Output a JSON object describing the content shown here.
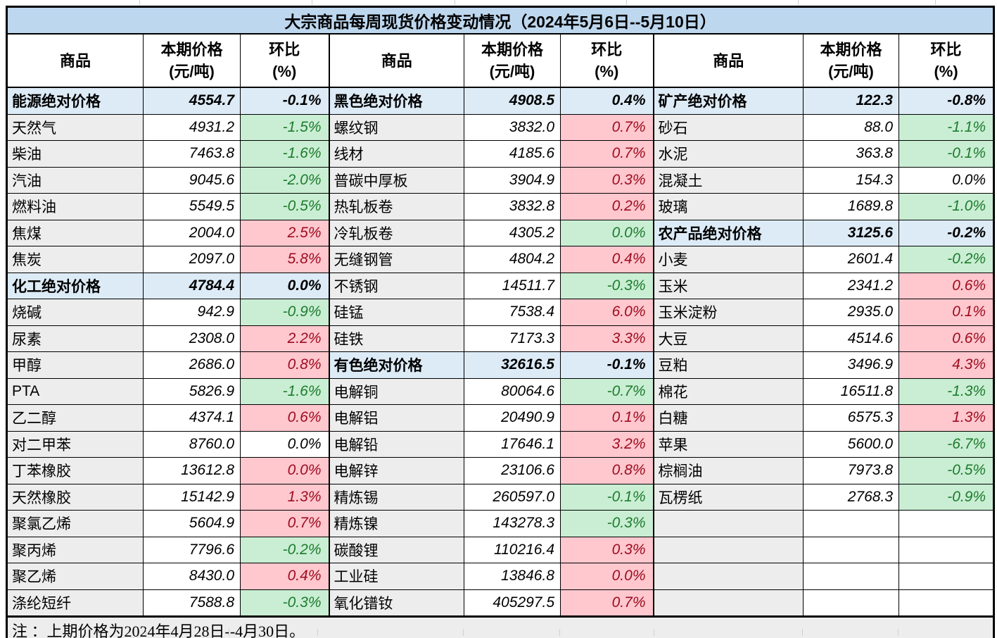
{
  "chart_data": {
    "type": "table",
    "title": "大宗商品每周现货价格变动情况（2024年5月6日--5月10日）",
    "note": "注 ：上期价格为2024年4月28日--4月30日。",
    "column_headers": {
      "commodity": "商品",
      "price_line1": "本期价格",
      "price_line2": "(元/吨)",
      "pct_line1": "环比",
      "pct_line2": "(%)"
    },
    "colors": {
      "title_bg": "#BDD7EE",
      "section_bg": "#DDEBF7",
      "name_bg": "#EDEDED",
      "increase_bg": "#FFC7CE",
      "increase_text": "#9C0B1E",
      "decrease_bg": "#C9EED3",
      "decrease_text": "#1E7B2E"
    },
    "groups": [
      {
        "rows": [
          {
            "kind": "section",
            "name": "能源绝对价格",
            "price": "4554.7",
            "pct": "-0.1%"
          },
          {
            "kind": "item",
            "name": "天然气",
            "price": "4931.2",
            "pct": "-1.5%",
            "trend": "down"
          },
          {
            "kind": "item",
            "name": "柴油",
            "price": "7463.8",
            "pct": "-1.6%",
            "trend": "down"
          },
          {
            "kind": "item",
            "name": "汽油",
            "price": "9045.6",
            "pct": "-2.0%",
            "trend": "down"
          },
          {
            "kind": "item",
            "name": "燃料油",
            "price": "5549.5",
            "pct": "-0.5%",
            "trend": "down"
          },
          {
            "kind": "item",
            "name": "焦煤",
            "price": "2004.0",
            "pct": "2.5%",
            "trend": "up"
          },
          {
            "kind": "item",
            "name": "焦炭",
            "price": "2097.0",
            "pct": "5.8%",
            "trend": "up"
          },
          {
            "kind": "section",
            "name": "化工绝对价格",
            "price": "4784.4",
            "pct": "0.0%"
          },
          {
            "kind": "item",
            "name": "烧碱",
            "price": "942.9",
            "pct": "-0.9%",
            "trend": "down"
          },
          {
            "kind": "item",
            "name": "尿素",
            "price": "2308.0",
            "pct": "2.2%",
            "trend": "up"
          },
          {
            "kind": "item",
            "name": "甲醇",
            "price": "2686.0",
            "pct": "0.8%",
            "trend": "up"
          },
          {
            "kind": "item",
            "name": "PTA",
            "price": "5826.9",
            "pct": "-1.6%",
            "trend": "down"
          },
          {
            "kind": "item",
            "name": "乙二醇",
            "price": "4374.1",
            "pct": "0.6%",
            "trend": "up"
          },
          {
            "kind": "item",
            "name": "对二甲苯",
            "price": "8760.0",
            "pct": "0.0%",
            "trend": "flat"
          },
          {
            "kind": "item",
            "name": "丁苯橡胶",
            "price": "13612.8",
            "pct": "0.0%",
            "trend": "up"
          },
          {
            "kind": "item",
            "name": "天然橡胶",
            "price": "15142.9",
            "pct": "1.3%",
            "trend": "up"
          },
          {
            "kind": "item",
            "name": "聚氯乙烯",
            "price": "5604.9",
            "pct": "0.7%",
            "trend": "up"
          },
          {
            "kind": "item",
            "name": "聚丙烯",
            "price": "7796.6",
            "pct": "-0.2%",
            "trend": "down"
          },
          {
            "kind": "item",
            "name": "聚乙烯",
            "price": "8430.0",
            "pct": "0.4%",
            "trend": "up"
          },
          {
            "kind": "item",
            "name": "涤纶短纤",
            "price": "7588.8",
            "pct": "-0.3%",
            "trend": "down"
          }
        ]
      },
      {
        "rows": [
          {
            "kind": "section",
            "name": "黑色绝对价格",
            "price": "4908.5",
            "pct": "0.4%"
          },
          {
            "kind": "item",
            "name": "螺纹钢",
            "price": "3832.0",
            "pct": "0.7%",
            "trend": "up"
          },
          {
            "kind": "item",
            "name": "线材",
            "price": "4185.6",
            "pct": "0.7%",
            "trend": "up"
          },
          {
            "kind": "item",
            "name": "普碳中厚板",
            "price": "3904.9",
            "pct": "0.3%",
            "trend": "up"
          },
          {
            "kind": "item",
            "name": "热轧板卷",
            "price": "3832.8",
            "pct": "0.2%",
            "trend": "up"
          },
          {
            "kind": "item",
            "name": "冷轧板卷",
            "price": "4305.2",
            "pct": "0.0%",
            "trend": "down"
          },
          {
            "kind": "item",
            "name": "无缝钢管",
            "price": "4804.2",
            "pct": "0.4%",
            "trend": "up"
          },
          {
            "kind": "item",
            "name": "不锈钢",
            "price": "14511.7",
            "pct": "-0.3%",
            "trend": "down"
          },
          {
            "kind": "item",
            "name": "硅锰",
            "price": "7538.4",
            "pct": "6.0%",
            "trend": "up"
          },
          {
            "kind": "item",
            "name": "硅铁",
            "price": "7173.3",
            "pct": "3.3%",
            "trend": "up"
          },
          {
            "kind": "section",
            "name": "有色绝对价格",
            "price": "32616.5",
            "pct": "-0.1%"
          },
          {
            "kind": "item",
            "name": "电解铜",
            "price": "80064.6",
            "pct": "-0.7%",
            "trend": "down"
          },
          {
            "kind": "item",
            "name": "电解铝",
            "price": "20490.9",
            "pct": "0.1%",
            "trend": "up"
          },
          {
            "kind": "item",
            "name": "电解铅",
            "price": "17646.1",
            "pct": "3.2%",
            "trend": "up"
          },
          {
            "kind": "item",
            "name": "电解锌",
            "price": "23106.6",
            "pct": "0.8%",
            "trend": "up"
          },
          {
            "kind": "item",
            "name": "精炼锡",
            "price": "260597.0",
            "pct": "-0.1%",
            "trend": "down"
          },
          {
            "kind": "item",
            "name": "精炼镍",
            "price": "143278.3",
            "pct": "-0.3%",
            "trend": "down"
          },
          {
            "kind": "item",
            "name": "碳酸锂",
            "price": "110216.4",
            "pct": "0.3%",
            "trend": "up"
          },
          {
            "kind": "item",
            "name": "工业硅",
            "price": "13846.8",
            "pct": "0.0%",
            "trend": "up"
          },
          {
            "kind": "item",
            "name": "氧化镨钕",
            "price": "405297.5",
            "pct": "0.7%",
            "trend": "up"
          }
        ]
      },
      {
        "rows": [
          {
            "kind": "section",
            "name": "矿产绝对价格",
            "price": "122.3",
            "pct": "-0.8%"
          },
          {
            "kind": "item",
            "name": "砂石",
            "price": "88.0",
            "pct": "-1.1%",
            "trend": "down"
          },
          {
            "kind": "item",
            "name": "水泥",
            "price": "363.8",
            "pct": "-0.1%",
            "trend": "down"
          },
          {
            "kind": "item",
            "name": "混凝土",
            "price": "154.3",
            "pct": "0.0%",
            "trend": "flat"
          },
          {
            "kind": "item",
            "name": "玻璃",
            "price": "1689.8",
            "pct": "-1.0%",
            "trend": "down"
          },
          {
            "kind": "section",
            "name": "农产品绝对价格",
            "price": "3125.6",
            "pct": "-0.2%"
          },
          {
            "kind": "item",
            "name": "小麦",
            "price": "2601.4",
            "pct": "-0.2%",
            "trend": "down"
          },
          {
            "kind": "item",
            "name": "玉米",
            "price": "2341.2",
            "pct": "0.6%",
            "trend": "up"
          },
          {
            "kind": "item",
            "name": "玉米淀粉",
            "price": "2935.0",
            "pct": "0.1%",
            "trend": "up"
          },
          {
            "kind": "item",
            "name": "大豆",
            "price": "4514.6",
            "pct": "0.6%",
            "trend": "up"
          },
          {
            "kind": "item",
            "name": "豆粕",
            "price": "3496.9",
            "pct": "4.3%",
            "trend": "up"
          },
          {
            "kind": "item",
            "name": "棉花",
            "price": "16511.8",
            "pct": "-1.3%",
            "trend": "down"
          },
          {
            "kind": "item",
            "name": "白糖",
            "price": "6575.3",
            "pct": "1.3%",
            "trend": "up"
          },
          {
            "kind": "item",
            "name": "苹果",
            "price": "5600.0",
            "pct": "-6.7%",
            "trend": "down"
          },
          {
            "kind": "item",
            "name": "棕榈油",
            "price": "7973.8",
            "pct": "-0.5%",
            "trend": "down"
          },
          {
            "kind": "item",
            "name": "瓦楞纸",
            "price": "2768.3",
            "pct": "-0.9%",
            "trend": "down"
          },
          {
            "kind": "empty",
            "name": "",
            "price": "",
            "pct": ""
          },
          {
            "kind": "empty",
            "name": "",
            "price": "",
            "pct": ""
          },
          {
            "kind": "empty",
            "name": "",
            "price": "",
            "pct": ""
          },
          {
            "kind": "empty",
            "name": "",
            "price": "",
            "pct": ""
          }
        ]
      }
    ]
  }
}
